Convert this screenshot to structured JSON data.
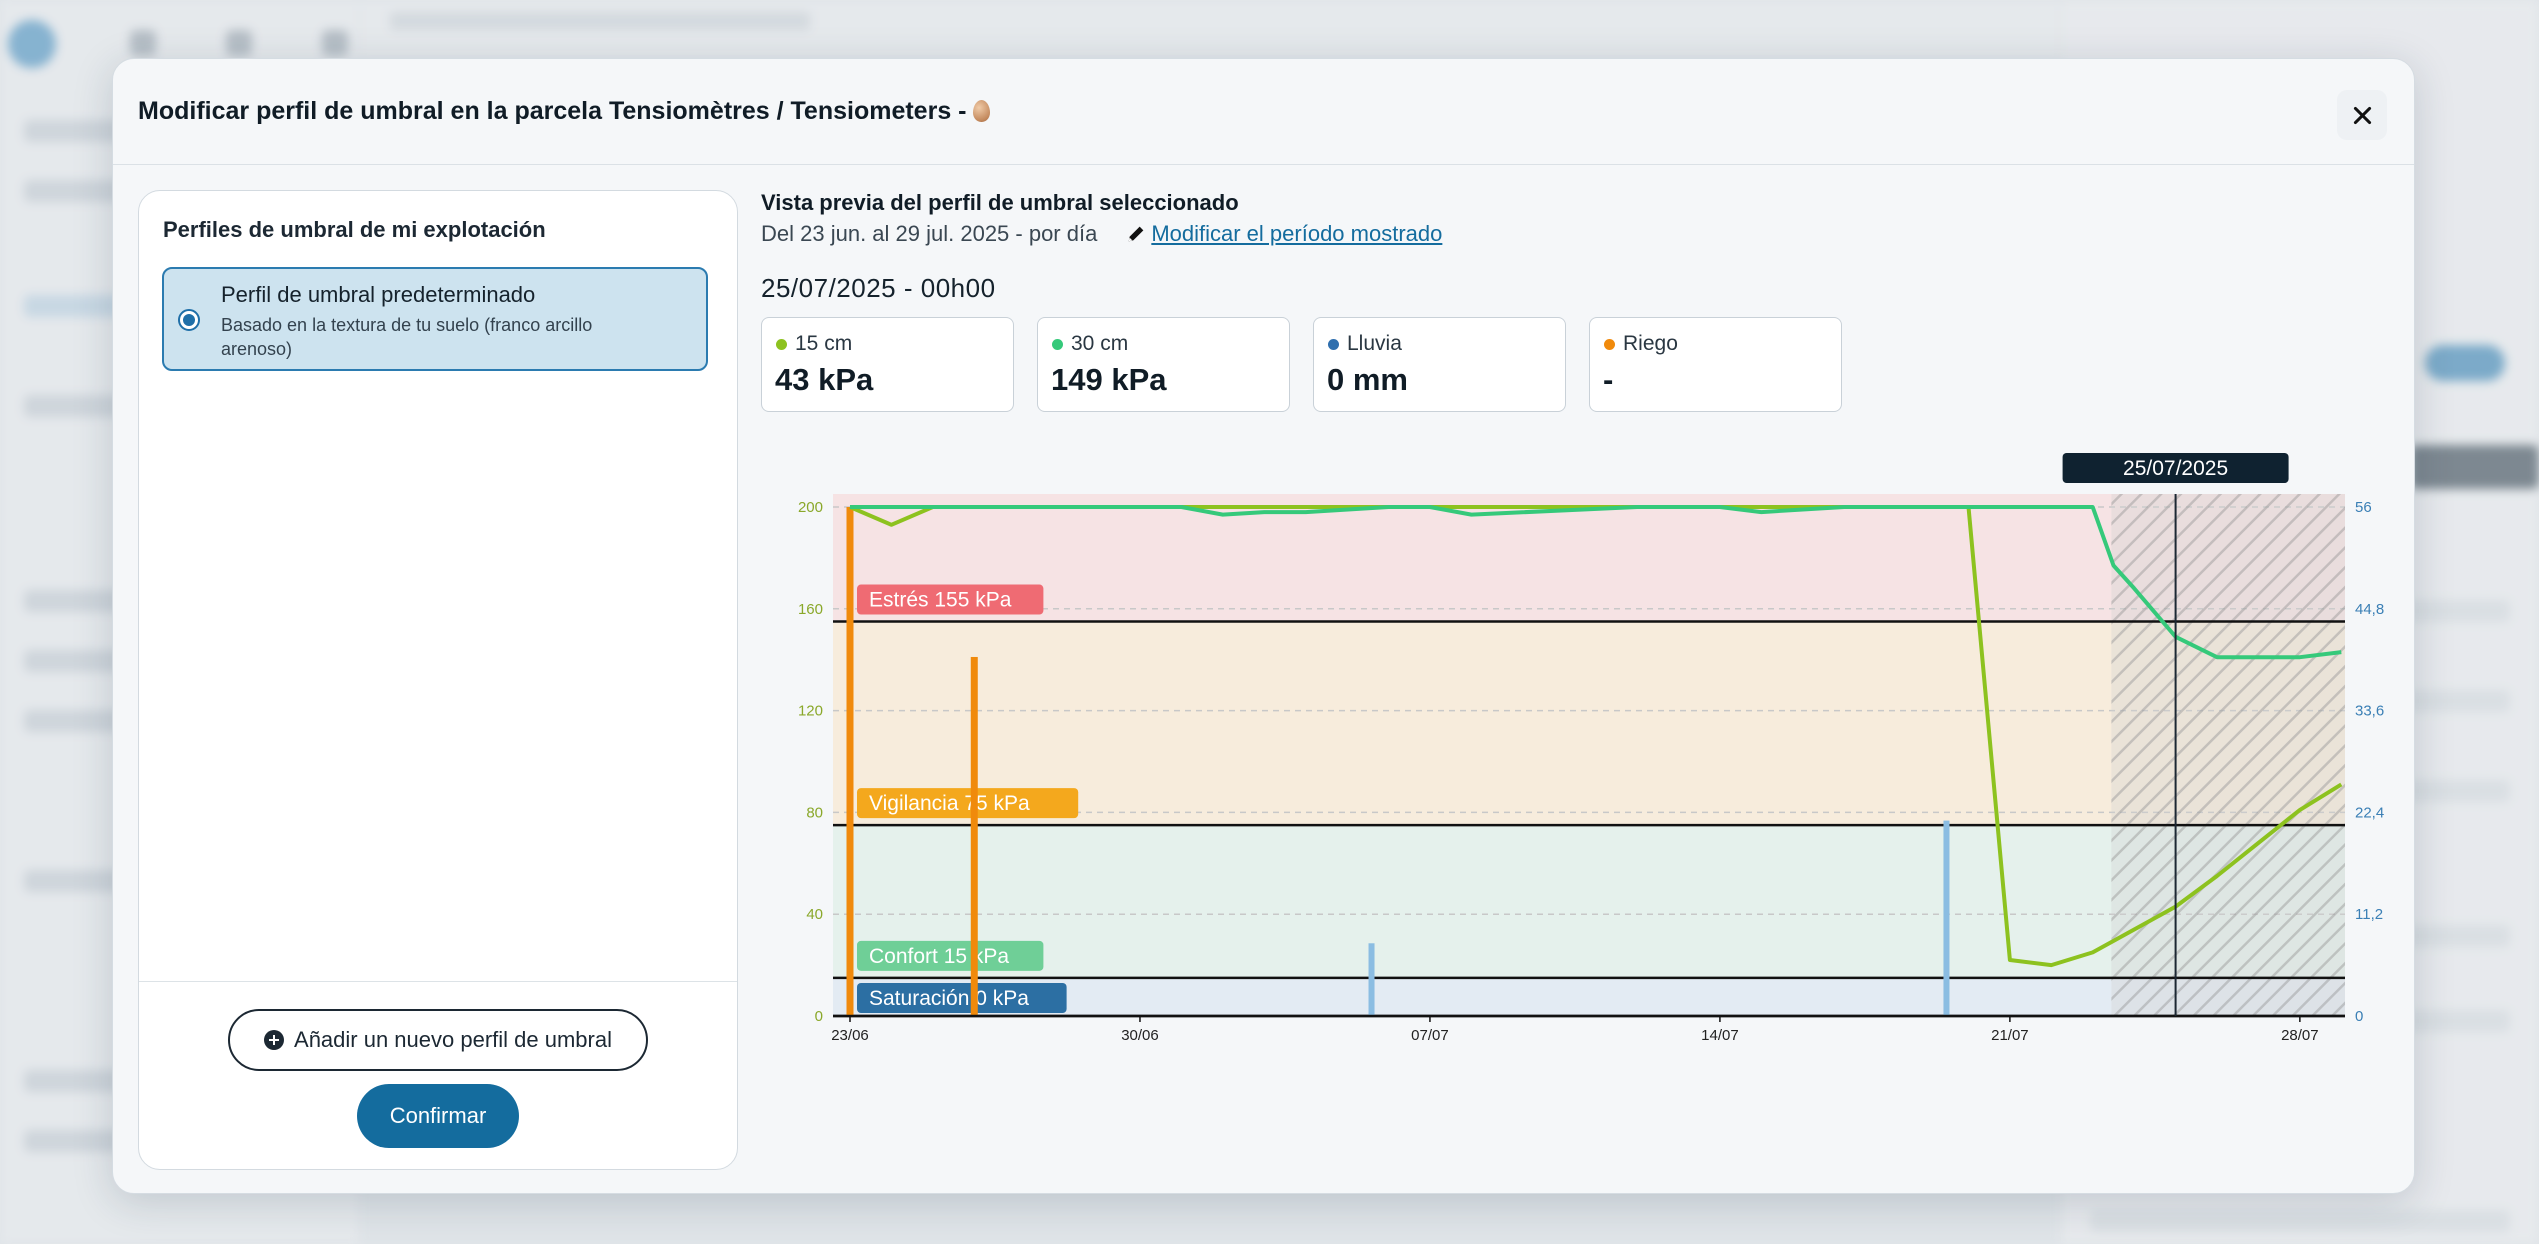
{
  "modal": {
    "title": "Modificar perfil de umbral en la parcela Tensiomètres / Tensiometers -",
    "close_icon": "close-icon",
    "title_icon": "egg-icon"
  },
  "left_panel": {
    "heading": "Perfiles de umbral de mi explotación",
    "profiles": [
      {
        "title": "Perfil de umbral predeterminado",
        "subtitle": "Basado en la textura de tu suelo (franco arcillo arenoso)",
        "selected": true
      }
    ],
    "add_button_label": "Añadir un nuevo perfil de umbral",
    "confirm_button_label": "Confirmar"
  },
  "preview": {
    "heading": "Vista previa del perfil de umbral seleccionado",
    "period_text": "Del 23 jun. al 29 jul. 2025 - por día",
    "modify_period_link": "Modificar el período mostrado",
    "selected_datetime": "25/07/2025 - 00h00",
    "metrics": [
      {
        "label": "15 cm",
        "value": "43 kPa",
        "color": "#8dc21f"
      },
      {
        "label": "30 cm",
        "value": "149 kPa",
        "color": "#35c97a"
      },
      {
        "label": "Lluvia",
        "value": "0 mm",
        "color": "#2f6fae"
      },
      {
        "label": "Riego",
        "value": "-",
        "color": "#f08a0c"
      }
    ]
  },
  "chart_data": {
    "type": "line",
    "x_tick_labels": [
      "23/06",
      "30/06",
      "07/07",
      "14/07",
      "21/07",
      "28/07"
    ],
    "x_range": [
      "2025-06-23",
      "2025-07-29"
    ],
    "y_left": {
      "ticks": [
        "0",
        "40",
        "80",
        "120",
        "160",
        "200"
      ],
      "range": [
        0,
        200
      ],
      "color": "#8aa82a"
    },
    "y_right": {
      "ticks": [
        "0",
        "11,2",
        "22,4",
        "33,6",
        "44,8",
        "56"
      ],
      "range": [
        0,
        56
      ],
      "color": "#3a7fb5"
    },
    "tooltip_date": "25/07/2025",
    "cursor_date": "2025-07-25",
    "forecast_start": "2025-07-23",
    "thresholds": [
      {
        "label": "Estrés 155 kPa",
        "value": 155,
        "color": "#ef6b73",
        "zone_color": "#f6e3e4"
      },
      {
        "label": "Vigilancia 75 kPa",
        "value": 75,
        "color": "#f4a81d",
        "zone_color": "#f7ecdc"
      },
      {
        "label": "Confort 15 kPa",
        "value": 15,
        "color": "#6fcf97",
        "zone_color": "#e5f1ec"
      },
      {
        "label": "Saturación 0 kPa",
        "value": 0,
        "color": "#2c6fa3",
        "zone_color": "#e3ebf3"
      }
    ],
    "series": [
      {
        "name": "15 cm",
        "color": "#8dc21f",
        "x": [
          "2025-06-23",
          "2025-06-24",
          "2025-06-25",
          "2025-06-26",
          "2025-07-20",
          "2025-07-21",
          "2025-07-22",
          "2025-07-23",
          "2025-07-24",
          "2025-07-25",
          "2025-07-26",
          "2025-07-27",
          "2025-07-28",
          "2025-07-29"
        ],
        "values": [
          200,
          193,
          200,
          200,
          200,
          22,
          20,
          25,
          34,
          43,
          55,
          68,
          81,
          91
        ]
      },
      {
        "name": "30 cm",
        "color": "#35c97a",
        "x": [
          "2025-06-23",
          "2025-07-01",
          "2025-07-02",
          "2025-07-03",
          "2025-07-04",
          "2025-07-06",
          "2025-07-07",
          "2025-07-08",
          "2025-07-12",
          "2025-07-13",
          "2025-07-14",
          "2025-07-15",
          "2025-07-16",
          "2025-07-17",
          "2025-07-23",
          "2025-07-23 12:00",
          "2025-07-24",
          "2025-07-25",
          "2025-07-26",
          "2025-07-27",
          "2025-07-28",
          "2025-07-29"
        ],
        "values": [
          200,
          200,
          197,
          198,
          198,
          200,
          200,
          197,
          200,
          200,
          200,
          198,
          199,
          200,
          200,
          177,
          168,
          149,
          141,
          141,
          141,
          143
        ]
      }
    ],
    "rain_bars": {
      "name": "Lluvia",
      "color": "#8bbde2",
      "x": [
        "2025-07-06",
        "2025-07-20"
      ],
      "values": [
        8,
        21.5
      ]
    },
    "irrigation_bars": {
      "name": "Riego",
      "color": "#f08a0c",
      "x": [
        "2025-06-23",
        "2025-06-26"
      ],
      "values": [
        56,
        39.5
      ]
    }
  }
}
